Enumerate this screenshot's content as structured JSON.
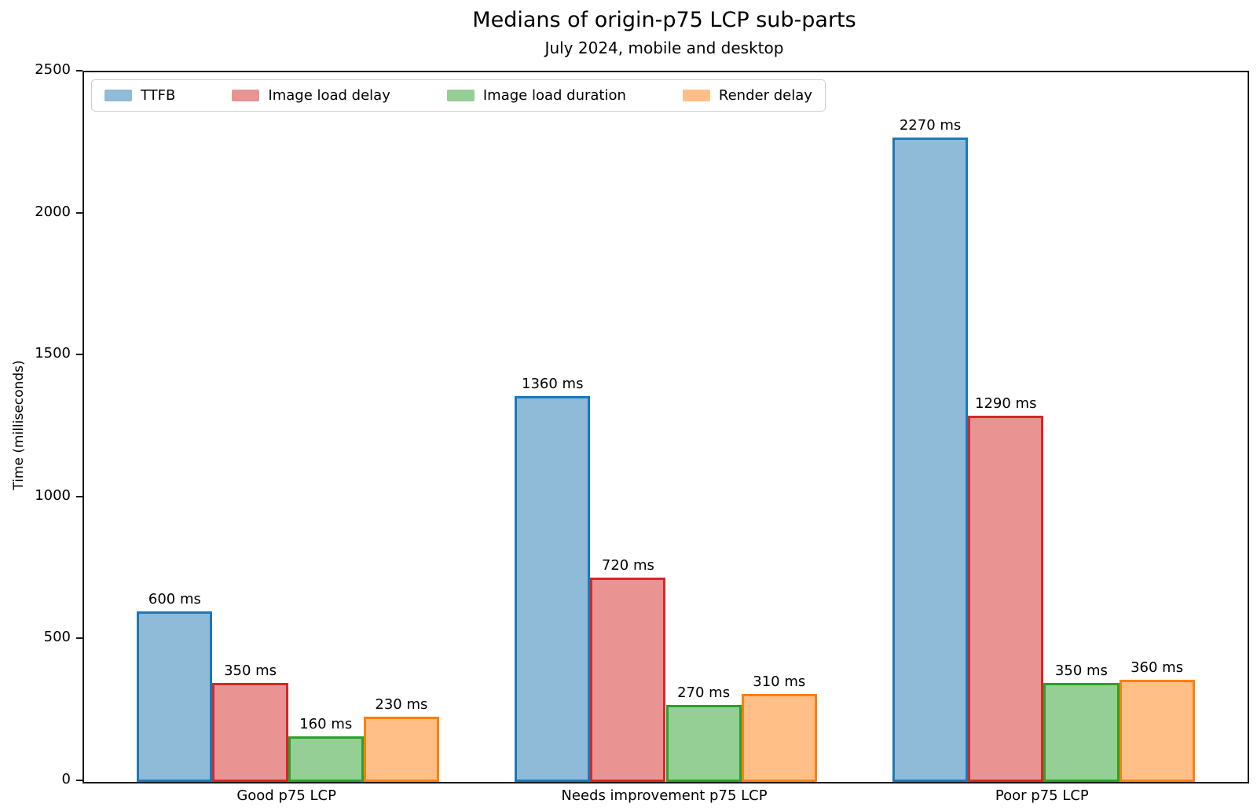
{
  "title": "Medians of origin-p75 LCP sub-parts",
  "subtitle": "July 2024, mobile and desktop",
  "chart_data": {
    "type": "bar",
    "title": "Medians of origin-p75 LCP sub-parts",
    "subtitle": "July 2024, mobile and desktop",
    "xlabel": "",
    "ylabel": "Time (milliseconds)",
    "ylim": [
      0,
      2500
    ],
    "yticks": [
      0,
      500,
      1000,
      1500,
      2000,
      2500
    ],
    "grid": false,
    "legend_position": "upper left, horizontal",
    "bar_label_suffix": " ms",
    "categories": [
      "Good p75 LCP",
      "Needs improvement p75 LCP",
      "Poor p75 LCP"
    ],
    "series": [
      {
        "name": "TTFB",
        "values": [
          600,
          1360,
          2270
        ],
        "fill": "#8FBBD9",
        "edge": "#1f77b4"
      },
      {
        "name": "Image load delay",
        "values": [
          350,
          720,
          1290
        ],
        "fill": "#EA9393",
        "edge": "#d62728"
      },
      {
        "name": "Image load duration",
        "values": [
          160,
          270,
          350
        ],
        "fill": "#95CF95",
        "edge": "#2ca02c"
      },
      {
        "name": "Render delay",
        "values": [
          230,
          310,
          360
        ],
        "fill": "#FFBF86",
        "edge": "#ff7f0e"
      }
    ]
  }
}
